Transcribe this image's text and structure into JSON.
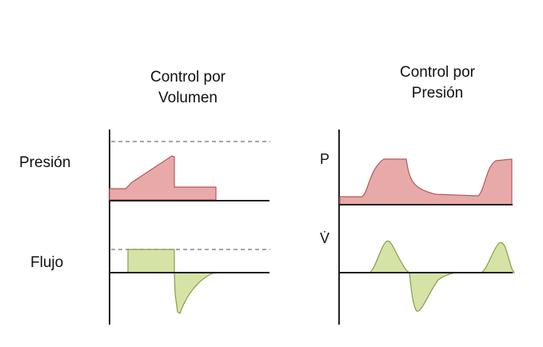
{
  "left_panel": {
    "title_line1": "Control  por",
    "title_line2": "Volumen",
    "row_label_pressure": "Presión",
    "row_label_flow": "Flujo"
  },
  "right_panel": {
    "title_line1": "Control por",
    "title_line2": "Presión",
    "axis_label_pressure": "P",
    "axis_label_flow": "V̇"
  },
  "colors": {
    "pressure_fill": "#e8a9a9",
    "pressure_stroke": "#b35a5a",
    "flow_fill": "#d6e3a6",
    "flow_stroke": "#8a9a4a",
    "axis": "#222222",
    "dashed": "#888888"
  }
}
